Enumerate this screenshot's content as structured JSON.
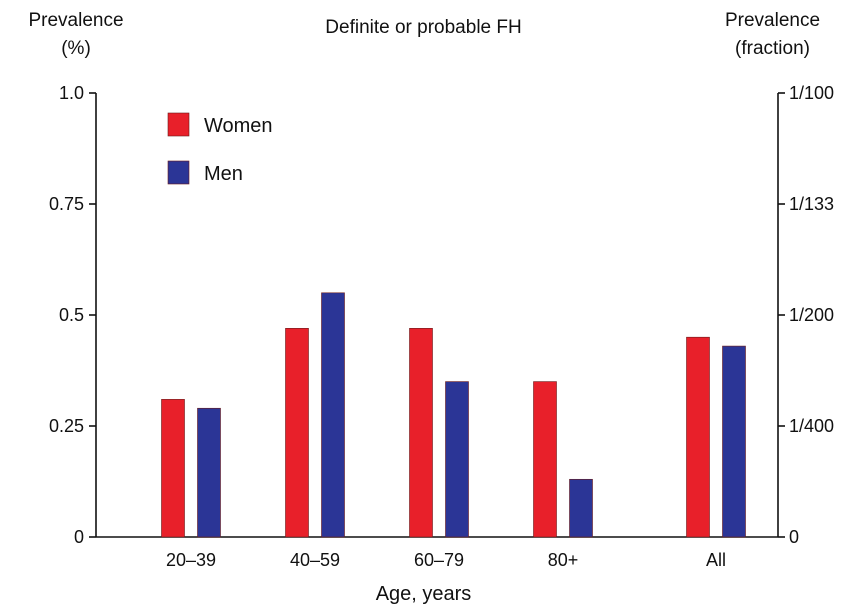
{
  "chart_data": {
    "type": "bar",
    "title": "Definite or probable FH",
    "ylabel": [
      "Prevalence",
      "(%)"
    ],
    "ylabel_right": [
      "Prevalence",
      "(fraction)"
    ],
    "xlabel": "Age, years",
    "categories": [
      "20–39",
      "40–59",
      "60–79",
      "80+",
      "All"
    ],
    "series": [
      {
        "name": "Women",
        "color": "#e8202a",
        "values": [
          0.31,
          0.47,
          0.47,
          0.35,
          0.45
        ]
      },
      {
        "name": "Men",
        "color": "#2b3596",
        "values": [
          0.29,
          0.55,
          0.35,
          0.13,
          0.43
        ]
      }
    ],
    "ylim": [
      0,
      1.0
    ],
    "yticks": [
      {
        "value": 0,
        "label": "0"
      },
      {
        "value": 0.25,
        "label": "0.25"
      },
      {
        "value": 0.5,
        "label": "0.5"
      },
      {
        "value": 0.75,
        "label": "0.75"
      },
      {
        "value": 1.0,
        "label": "1.0"
      }
    ],
    "yticks_right": [
      {
        "value": 0,
        "label": "0"
      },
      {
        "value": 0.25,
        "label": "1/400"
      },
      {
        "value": 0.5,
        "label": "1/200"
      },
      {
        "value": 0.75,
        "label": "1/133"
      },
      {
        "value": 1.0,
        "label": "1/100"
      }
    ],
    "legend_position": "top-left",
    "grid": false
  }
}
